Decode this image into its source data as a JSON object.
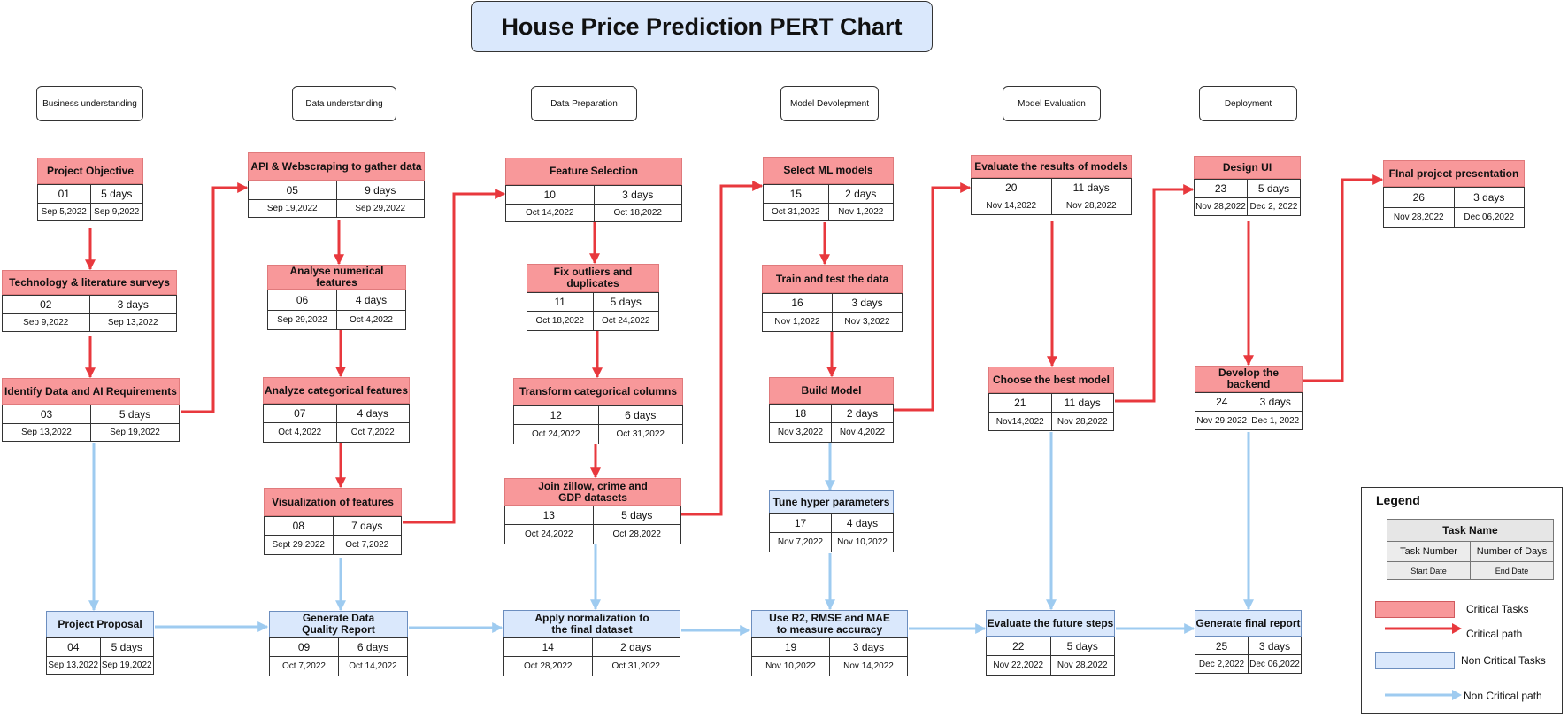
{
  "title": "House Price Prediction PERT Chart",
  "phases": [
    {
      "id": "business",
      "label": "Business understanding"
    },
    {
      "id": "data-understanding",
      "label": "Data understanding"
    },
    {
      "id": "data-prep",
      "label": "Data Preparation"
    },
    {
      "id": "model-dev",
      "label": "Model Devolepment"
    },
    {
      "id": "model-eval",
      "label": "Model Evaluation"
    },
    {
      "id": "deploy",
      "label": "Deployment"
    }
  ],
  "tasks": [
    {
      "num": "01",
      "name": "Project Objective",
      "days": "5 days",
      "start": "Sep 5,2022",
      "end": "Sep 9,2022",
      "critical": true
    },
    {
      "num": "02",
      "name": "Technology & literature surveys",
      "days": "3 days",
      "start": "Sep 9,2022",
      "end": "Sep 13,2022",
      "critical": true
    },
    {
      "num": "03",
      "name": "Identify Data and AI Requirements",
      "days": "5 days",
      "start": "Sep 13,2022",
      "end": "Sep 19,2022",
      "critical": true
    },
    {
      "num": "04",
      "name": "Project Proposal",
      "days": "5 days",
      "start": "Sep 13,2022",
      "end": "Sep 19,2022",
      "critical": false
    },
    {
      "num": "05",
      "name": "API & Webscraping to gather data",
      "days": "9 days",
      "start": "Sep 19,2022",
      "end": "Sep 29,2022",
      "critical": true
    },
    {
      "num": "06",
      "name": "Analyse numerical features",
      "days": "4 days",
      "start": "Sep 29,2022",
      "end": "Oct 4,2022",
      "critical": true
    },
    {
      "num": "07",
      "name": "Analyze categorical features",
      "days": "4 days",
      "start": "Oct 4,2022",
      "end": "Oct 7,2022",
      "critical": true
    },
    {
      "num": "08",
      "name": "Visualization of features",
      "days": "7 days",
      "start": "Sept 29,2022",
      "end": "Oct 7,2022",
      "critical": true
    },
    {
      "num": "09",
      "name": "Generate Data Quality Report",
      "days": "6 days",
      "start": "Oct 7,2022",
      "end": "Oct 14,2022",
      "critical": false
    },
    {
      "num": "10",
      "name": "Feature Selection",
      "days": "3 days",
      "start": "Oct 14,2022",
      "end": "Oct 18,2022",
      "critical": true
    },
    {
      "num": "11",
      "name": "Fix outliers and duplicates",
      "days": "5 days",
      "start": "Oct 18,2022",
      "end": "Oct 24,2022",
      "critical": true
    },
    {
      "num": "12",
      "name": "Transform categorical columns",
      "days": "6 days",
      "start": "Oct 24,2022",
      "end": "Oct 31,2022",
      "critical": true
    },
    {
      "num": "13",
      "name": "Join zillow, crime and GDP datasets",
      "days": "5 days",
      "start": "Oct 24,2022",
      "end": "Oct 28,2022",
      "critical": true
    },
    {
      "num": "14",
      "name": "Apply normalization to the final dataset",
      "days": "2 days",
      "start": "Oct 28,2022",
      "end": "Oct 31,2022",
      "critical": false
    },
    {
      "num": "15",
      "name": "Select ML models",
      "days": "2 days",
      "start": "Oct 31,2022",
      "end": "Nov 1,2022",
      "critical": true
    },
    {
      "num": "16",
      "name": "Train and test the data",
      "days": "3 days",
      "start": "Nov 1,2022",
      "end": "Nov 3,2022",
      "critical": true
    },
    {
      "num": "18",
      "name": "Build Model",
      "days": "2 days",
      "start": "Nov 3,2022",
      "end": "Nov 4,2022",
      "critical": true
    },
    {
      "num": "17",
      "name": "Tune hyper parameters",
      "days": "4 days",
      "start": "Nov 7,2022",
      "end": "Nov 10,2022",
      "critical": false
    },
    {
      "num": "19",
      "name": "Use R2, RMSE and MAE to measure accuracy",
      "days": "3 days",
      "start": "Nov 10,2022",
      "end": "Nov 14,2022",
      "critical": false
    },
    {
      "num": "20",
      "name": "Evaluate the results of models",
      "days": "11 days",
      "start": "Nov 14,2022",
      "end": "Nov 28,2022",
      "critical": true
    },
    {
      "num": "21",
      "name": "Choose the best model",
      "days": "11 days",
      "start": "Nov14,2022",
      "end": "Nov 28,2022",
      "critical": true
    },
    {
      "num": "22",
      "name": "Evaluate the future steps",
      "days": "5 days",
      "start": "Nov 22,2022",
      "end": "Nov 28,2022",
      "critical": false
    },
    {
      "num": "23",
      "name": "Design UI",
      "days": "5 days",
      "start": "Nov 28,2022",
      "end": "Dec 2, 2022",
      "critical": true
    },
    {
      "num": "24",
      "name": "Develop the backend",
      "days": "3 days",
      "start": "Nov 29,2022",
      "end": "Dec 1, 2022",
      "critical": true
    },
    {
      "num": "25",
      "name": "Generate final report",
      "days": "3 days",
      "start": "Dec 2,2022",
      "end": "Dec 06,2022",
      "critical": false
    },
    {
      "num": "26",
      "name": "FInal project presentation",
      "days": "3 days",
      "start": "Nov 28,2022",
      "end": "Dec 06,2022",
      "critical": true
    }
  ],
  "legend": {
    "title": "Legend",
    "task_name": "Task Name",
    "task_number": "Task Number",
    "number_of_days": "Number of Days",
    "start_date": "Start Date",
    "end_date": "End Date",
    "critical_tasks": "Critical Tasks",
    "critical_path": "Critical path",
    "non_critical_tasks": "Non Critical Tasks",
    "non_critical_path": "Non Critical path"
  },
  "colors": {
    "critical_fill": "#f8989a",
    "non_critical_fill": "#dae8fc",
    "critical_path": "#e8383d",
    "non_critical_path": "#9ecbf0",
    "title_fill": "#dae8fc"
  }
}
